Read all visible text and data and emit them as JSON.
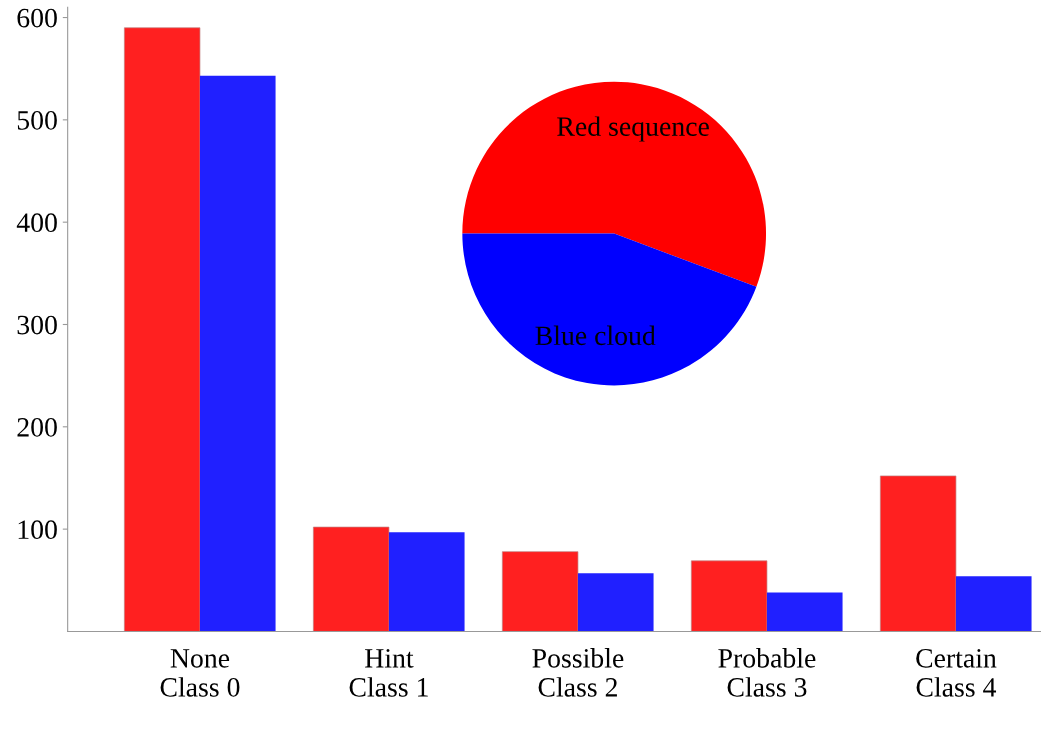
{
  "chart_data": [
    {
      "type": "bar",
      "categories": [
        "None\nClass 0",
        "Hint\nClass 1",
        "Possible\nClass 2",
        "Probable\nClass 3",
        "Certain\nClass 4"
      ],
      "series": [
        {
          "color": "#ff2020",
          "values": [
            590,
            102,
            78,
            69,
            152
          ]
        },
        {
          "color": "#2020ff",
          "values": [
            543,
            97,
            57,
            38,
            54
          ]
        }
      ],
      "ylim": [
        0,
        610
      ],
      "yticks": [
        100,
        200,
        300,
        400,
        500,
        600
      ],
      "grid": false
    },
    {
      "type": "pie",
      "categories": [
        "Red sequence",
        "Blue cloud"
      ],
      "values": [
        55.7,
        44.3
      ],
      "colors": [
        "#ff0000",
        "#0000ff"
      ]
    }
  ]
}
